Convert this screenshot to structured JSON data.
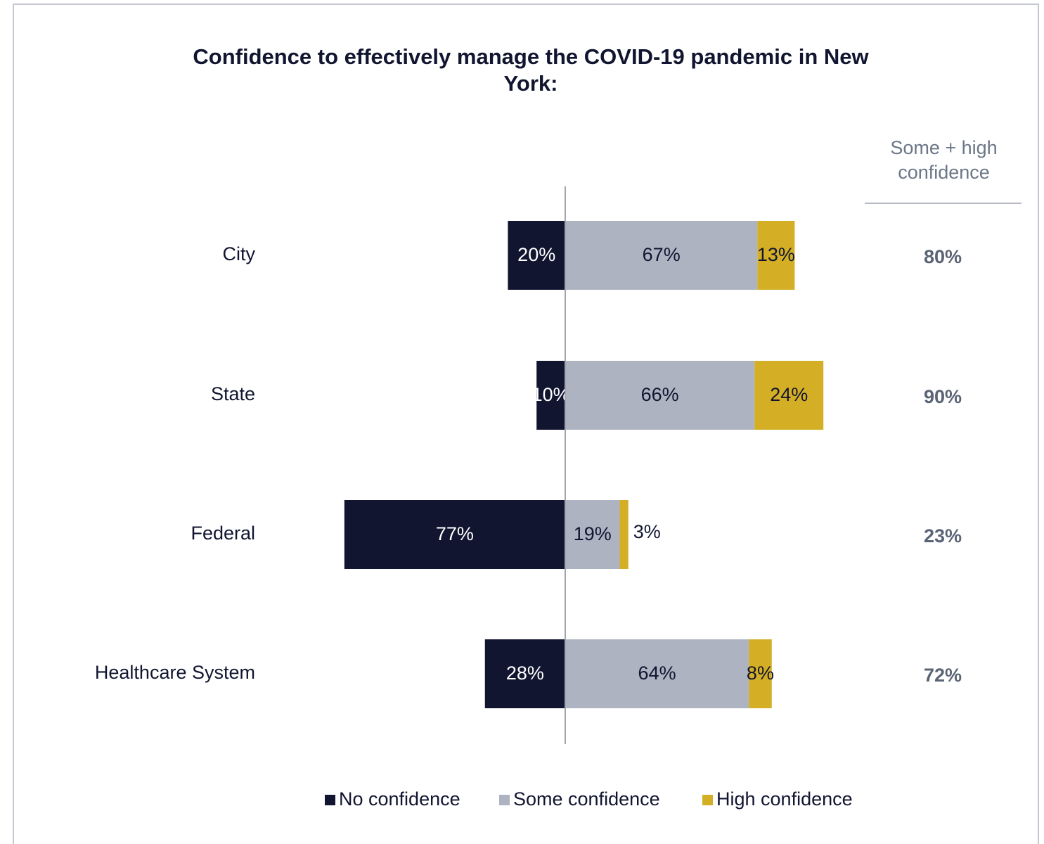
{
  "chart_data": {
    "type": "diverging-bar",
    "title": "Confidence to effectively manage the COVID-19 pandemic in New York:",
    "categories": [
      "City",
      "State",
      "Federal",
      "Healthcare System"
    ],
    "series": [
      {
        "name": "No confidence",
        "color": "#111530",
        "values": [
          20,
          10,
          77,
          28
        ],
        "value_labels": [
          "20%",
          "10%",
          "77%",
          "28%"
        ]
      },
      {
        "name": "Some confidence",
        "color": "#adb3c1",
        "values": [
          67,
          66,
          19,
          64
        ],
        "value_labels": [
          "67%",
          "66%",
          "19%",
          "64%"
        ]
      },
      {
        "name": "High confidence",
        "color": "#d4af25",
        "values": [
          13,
          24,
          3,
          8
        ],
        "value_labels": [
          "13%",
          "24%",
          "3%",
          "8%"
        ]
      }
    ],
    "summary": {
      "title": "Some + high confidence",
      "values": [
        80,
        90,
        23,
        72
      ],
      "value_labels": [
        "80%",
        "90%",
        "23%",
        "72%"
      ]
    }
  }
}
